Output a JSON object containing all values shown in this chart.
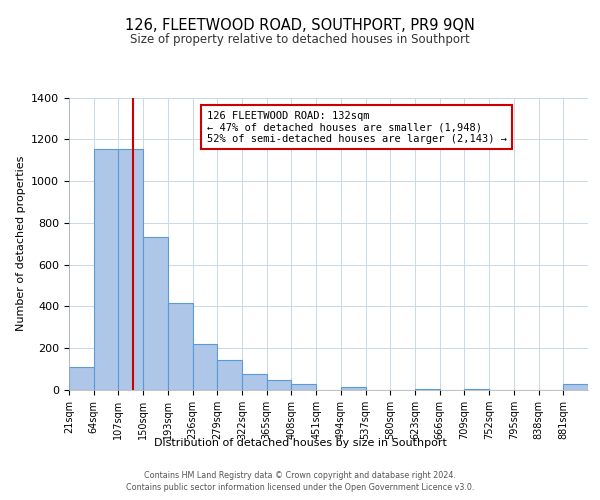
{
  "title": "126, FLEETWOOD ROAD, SOUTHPORT, PR9 9QN",
  "subtitle": "Size of property relative to detached houses in Southport",
  "xlabel": "Distribution of detached houses by size in Southport",
  "ylabel": "Number of detached properties",
  "bin_edges": [
    21,
    64,
    107,
    150,
    193,
    236,
    279,
    322,
    365,
    408,
    451,
    494,
    537,
    580,
    623,
    666,
    709,
    752,
    795,
    838,
    881
  ],
  "bar_heights": [
    110,
    1155,
    1155,
    730,
    415,
    220,
    145,
    75,
    50,
    30,
    0,
    15,
    0,
    0,
    5,
    0,
    5,
    0,
    0,
    0,
    30
  ],
  "bar_color": "#aec6e8",
  "bar_edge_color": "#5b9bd5",
  "property_line_x": 132,
  "property_line_color": "#cc0000",
  "annotation_line1": "126 FLEETWOOD ROAD: 132sqm",
  "annotation_line2": "← 47% of detached houses are smaller (1,948)",
  "annotation_line3": "52% of semi-detached houses are larger (2,143) →",
  "annotation_box_color": "#ffffff",
  "annotation_box_edge_color": "#cc0000",
  "ylim": [
    0,
    1400
  ],
  "yticks": [
    0,
    200,
    400,
    600,
    800,
    1000,
    1200,
    1400
  ],
  "grid_color": "#c8d8e8",
  "background_color": "#ffffff",
  "footer_line1": "Contains HM Land Registry data © Crown copyright and database right 2024.",
  "footer_line2": "Contains public sector information licensed under the Open Government Licence v3.0."
}
